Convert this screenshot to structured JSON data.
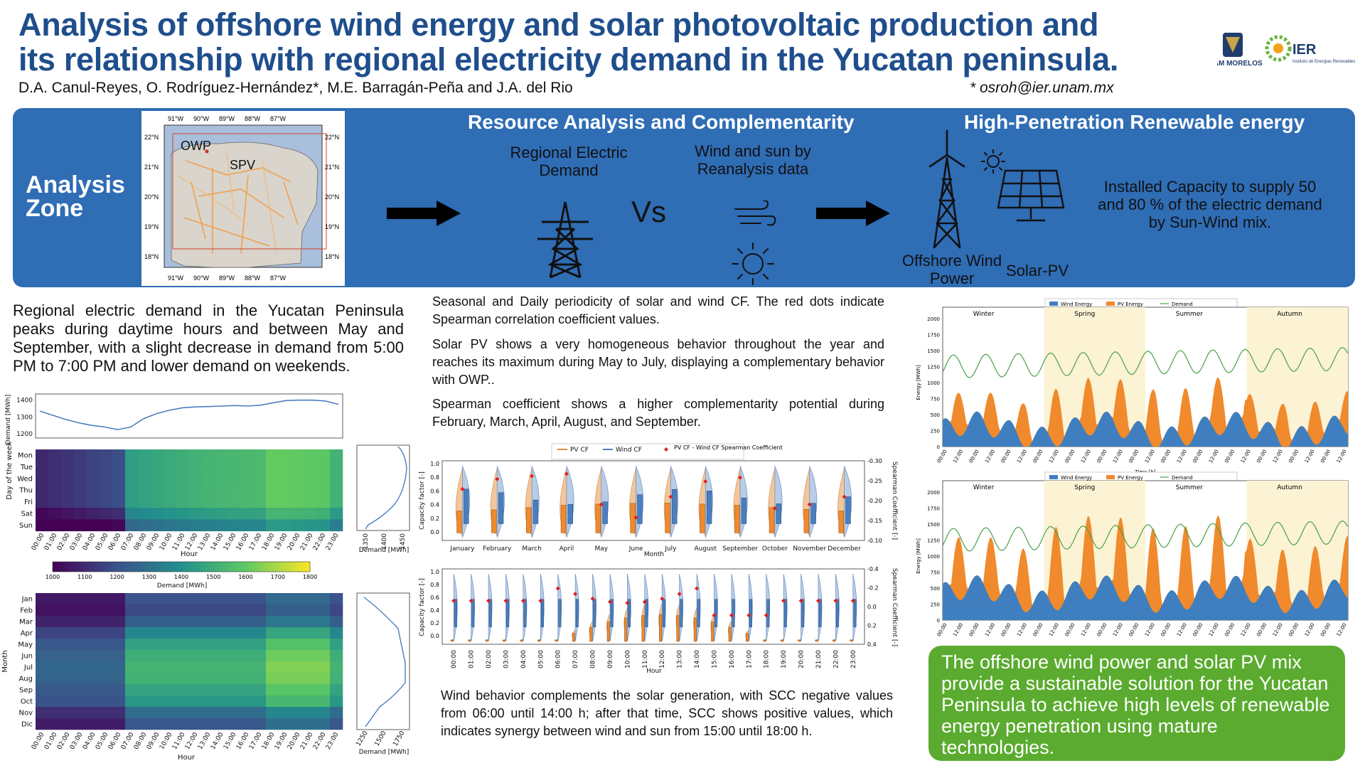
{
  "header": {
    "title_line1": "Analysis of offshore wind energy and solar photovoltaic production and",
    "title_line2": "its relationship with regional electricity demand in the Yucatan peninsula.",
    "authors": "D.A. Canul-Reyes,  O. Rodríguez-Hernández*,  M.E. Barragán-Peña and J.A. del Rio",
    "email": "* osroh@ier.unam.mx",
    "logo1": "UNAM MORELOS",
    "logo2": "IER",
    "logo2_sub": "Instituto de Energías Renovables"
  },
  "band": {
    "zone_line1": "Analysis",
    "zone_line2": "Zone",
    "map": {
      "lon_ticks": [
        "91°W",
        "90°W",
        "89°W",
        "88°W",
        "87°W"
      ],
      "lat_ticks": [
        "22°N",
        "21°N",
        "20°N",
        "19°N",
        "18°N"
      ],
      "owp": "OWP",
      "spv": "SPV"
    },
    "resource_title": "Resource Analysis and Complementarity",
    "regional_label": "Regional Electric Demand",
    "vs": "Vs",
    "wind_sun_label": "Wind and sun by Reanalysis data",
    "high_title": "High-Penetration Renewable energy",
    "offshore_label": "Offshore Wind Power",
    "solar_label": "Solar-PV",
    "capacity_text": "Installed Capacity to supply 50 and 80 % of the electric demand by Sun-Wind mix."
  },
  "left": {
    "paragraph": "Regional electric demand in the Yucatan Peninsula peaks during daytime hours and between May and September, with a slight decrease in demand from 5:00 PM to 7:00 PM and lower demand on weekends.",
    "line_ylabel": "Demand [MWh]",
    "line_yticks": [
      "1400",
      "1300",
      "1200"
    ],
    "heat1_ylabel": "Day of the week",
    "days": [
      "Mon",
      "Tue",
      "Wed",
      "Thu",
      "Fri",
      "Sat",
      "Sun"
    ],
    "hours": [
      "00:00",
      "01:00",
      "02:00",
      "03:00",
      "04:00",
      "05:00",
      "06:00",
      "07:00",
      "08:00",
      "09:00",
      "10:00",
      "11:00",
      "12:00",
      "13:00",
      "14:00",
      "15:00",
      "16:00",
      "17:00",
      "18:00",
      "19:00",
      "20:00",
      "21:00",
      "22:00",
      "23:00"
    ],
    "xlabel": "Hour",
    "side1_ticks": [
      "1350",
      "1400",
      "1450"
    ],
    "side_xlabel": "Demand [MWh]",
    "cbar_ticks": [
      "1000",
      "1100",
      "1200",
      "1300",
      "1400",
      "1500",
      "1600",
      "1700",
      "1800"
    ],
    "cbar_label": "Demand [MWh]",
    "heat2_ylabel": "Month",
    "months": [
      "Jan",
      "Feb",
      "Mar",
      "Apr",
      "May",
      "Jun",
      "Jul",
      "Aug",
      "Sep",
      "Oct",
      "Nov",
      "Dic"
    ],
    "side2_ticks": [
      "1250",
      "1500",
      "1750"
    ]
  },
  "middle": {
    "p1": "Seasonal and Daily periodicity of solar and wind CF. The red dots indicate Spearman correlation coefficient values.",
    "p2": "Solar PV shows a very homogeneous behavior throughout the year and reaches its maximum during May to July, displaying a complementary behavior with OWP..",
    "p3": "Spearman coefficient shows a higher complementarity potential during February, March, April, August, and September.",
    "legend_pv": "PV CF",
    "legend_wind": "Wind CF",
    "legend_spear": "PV CF - Wind CF Spearman Coefficient",
    "month_names": [
      "January",
      "February",
      "March",
      "April",
      "May",
      "June",
      "July",
      "August",
      "September",
      "October",
      "November",
      "December"
    ],
    "month_axis": "Month",
    "cf_ylabel": "Capacity factor [-]",
    "cf_yticks": [
      "1.0",
      "0.8",
      "0.6",
      "0.4",
      "0.2",
      "0.0"
    ],
    "spear_ylabel": "Spearman Coefficient [-]",
    "spear_ticks_top": [
      "-0.30",
      "-0.25",
      "-0.20",
      "-0.15",
      "-0.10"
    ],
    "spear_ticks_bottom": [
      "-0.4",
      "-0.2",
      "0.0",
      "0.2",
      "0.4"
    ],
    "hour_axis": "Hour",
    "p4": "Wind behavior complements the solar generation, with SCC negative values from 06:00 until 14:00 h; after that time, SCC shows positive values, which indicates synergy between wind and sun from 15:00 until 18:00 h."
  },
  "right": {
    "legend_wind": "Wind Energy",
    "legend_pv": "PV Energy",
    "legend_demand": "Demand",
    "seasons": [
      "Winter",
      "Spring",
      "Summer",
      "Autumn"
    ],
    "ylabel": "Energy [MWh]",
    "yticks": [
      "2000",
      "1750",
      "1500",
      "1250",
      "1000",
      "750",
      "500",
      "250",
      "0"
    ],
    "xlabel": "Time [h]",
    "xticks": [
      "00:00",
      "12:00",
      "00:00",
      "12:00",
      "00:00",
      "12:00",
      "00:00",
      "12:00",
      "00:00",
      "12:00",
      "00:00",
      "12:00",
      "00:00",
      "12:00",
      "00:00",
      "12:00",
      "00:00",
      "12:00",
      "00:00",
      "12:00",
      "00:00",
      "12:00",
      "00:00",
      "12:00",
      "00:00",
      "12:00"
    ],
    "conclusion": "The offshore wind power and solar PV mix provide a sustainable solution for the Yucatan Peninsula to achieve high levels of renewable energy penetration using mature technologies."
  },
  "colors": {
    "title": "#1f4e8c",
    "band": "#2f6db5",
    "wind": "#3f7fbf",
    "pv": "#f08a2c",
    "demand": "#4aa04a",
    "green_box": "#5aab2f"
  }
}
